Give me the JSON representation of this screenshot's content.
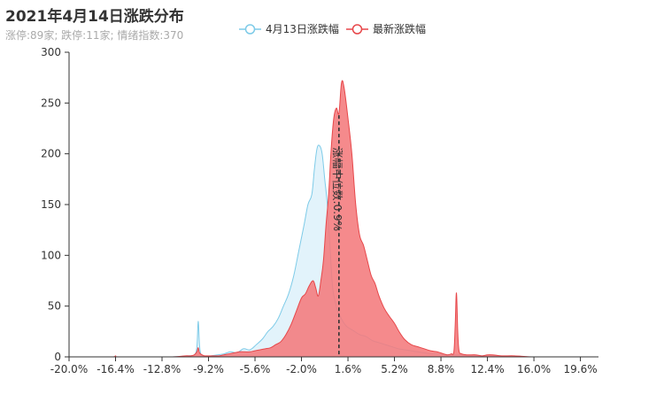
{
  "header": {
    "title": "2021年4月14日涨跌分布",
    "subtitle": "涨停:89家; 跌停:11家; 情绪指数:370"
  },
  "chart_data": {
    "type": "area",
    "title": "2021年4月14日涨跌分布",
    "subtitle": "涨停:89家; 跌停:11家; 情绪指数:370",
    "xlim": [
      -20.0,
      21.0
    ],
    "ylim": [
      0,
      300
    ],
    "x_ticks": [
      "-20.0%",
      "-16.4%",
      "-12.8%",
      "-9.2%",
      "-5.6%",
      "-2.0%",
      "1.6%",
      "5.2%",
      "8.8%",
      "12.4%",
      "16.0%",
      "19.6%"
    ],
    "y_ticks": [
      0,
      50,
      100,
      150,
      200,
      250,
      300
    ],
    "legend_position": "top-center",
    "markline": {
      "x": 0.9,
      "label": "涨幅中位数:0.9%",
      "color": "#333333"
    },
    "series": [
      {
        "name": "4月13日涨跌幅",
        "color": "#7ecbe8",
        "fill": "#dff2fb",
        "x": [
          -20.0,
          -18.0,
          -16.0,
          -14.0,
          -12.0,
          -10.8,
          -10.3,
          -10.1,
          -10.0,
          -9.9,
          -9.8,
          -9.6,
          -9.4,
          -9.0,
          -8.5,
          -8.0,
          -7.5,
          -7.0,
          -6.5,
          -6.0,
          -5.5,
          -5.0,
          -4.6,
          -4.2,
          -3.8,
          -3.4,
          -3.0,
          -2.6,
          -2.2,
          -1.8,
          -1.5,
          -1.2,
          -1.0,
          -0.8,
          -0.6,
          -0.4,
          -0.2,
          0.0,
          0.2,
          0.4,
          0.6,
          0.8,
          1.0,
          1.2,
          1.5,
          2.0,
          2.5,
          3.0,
          3.5,
          4.0,
          4.5,
          5.0,
          5.5,
          6.0,
          6.5,
          7.0,
          7.5,
          8.0,
          8.5,
          9.0,
          9.4,
          9.6,
          9.8,
          10.0,
          10.3,
          11.0,
          12.0,
          13.0,
          14.0,
          16.0,
          18.0,
          21.0
        ],
        "y": [
          0,
          0,
          0,
          0,
          0,
          1,
          2,
          10,
          35,
          12,
          3,
          1,
          0,
          1,
          2,
          3,
          5,
          4,
          8,
          7,
          12,
          18,
          25,
          30,
          38,
          50,
          62,
          80,
          105,
          130,
          150,
          160,
          185,
          205,
          208,
          200,
          175,
          150,
          110,
          70,
          55,
          45,
          40,
          35,
          30,
          26,
          22,
          20,
          16,
          14,
          12,
          10,
          8,
          7,
          6,
          5,
          4,
          3,
          3,
          2,
          2,
          2,
          2,
          2,
          2,
          1,
          1,
          1,
          0,
          0,
          0,
          0
        ]
      },
      {
        "name": "最新涨跌幅",
        "color": "#e7474a",
        "fill": "#f47a7c",
        "x": [
          -20.0,
          -18.0,
          -16.6,
          -16.4,
          -16.2,
          -14.0,
          -12.0,
          -11.0,
          -10.6,
          -10.3,
          -10.1,
          -10.0,
          -9.9,
          -9.7,
          -9.5,
          -9.2,
          -8.8,
          -8.4,
          -8.0,
          -7.6,
          -7.2,
          -6.8,
          -6.4,
          -6.0,
          -5.6,
          -5.2,
          -4.8,
          -4.4,
          -4.0,
          -3.6,
          -3.2,
          -2.8,
          -2.4,
          -2.0,
          -1.7,
          -1.4,
          -1.1,
          -0.9,
          -0.7,
          -0.5,
          -0.3,
          -0.1,
          0.1,
          0.3,
          0.5,
          0.7,
          0.9,
          1.1,
          1.3,
          1.6,
          1.9,
          2.2,
          2.5,
          2.8,
          3.1,
          3.4,
          3.7,
          4.0,
          4.4,
          4.8,
          5.2,
          5.6,
          6.0,
          6.5,
          7.0,
          7.5,
          8.0,
          8.5,
          9.0,
          9.3,
          9.6,
          9.8,
          9.9,
          10.0,
          10.1,
          10.2,
          10.4,
          10.8,
          11.5,
          12.0,
          12.4,
          12.8,
          13.5,
          14.5,
          16.0,
          18.0,
          21.0
        ],
        "y": [
          0,
          0,
          0,
          1,
          0,
          0,
          0,
          1,
          1,
          2,
          5,
          9,
          4,
          2,
          1,
          1,
          1,
          1,
          2,
          3,
          4,
          5,
          5,
          5,
          6,
          7,
          8,
          9,
          12,
          15,
          22,
          32,
          45,
          58,
          62,
          70,
          75,
          68,
          60,
          75,
          95,
          130,
          160,
          205,
          235,
          245,
          240,
          270,
          265,
          235,
          200,
          150,
          120,
          110,
          95,
          80,
          72,
          60,
          48,
          40,
          33,
          24,
          17,
          12,
          10,
          8,
          6,
          5,
          3,
          2,
          3,
          5,
          30,
          63,
          25,
          6,
          3,
          2,
          2,
          1,
          2,
          2,
          1,
          1,
          0,
          0,
          0
        ]
      }
    ]
  }
}
